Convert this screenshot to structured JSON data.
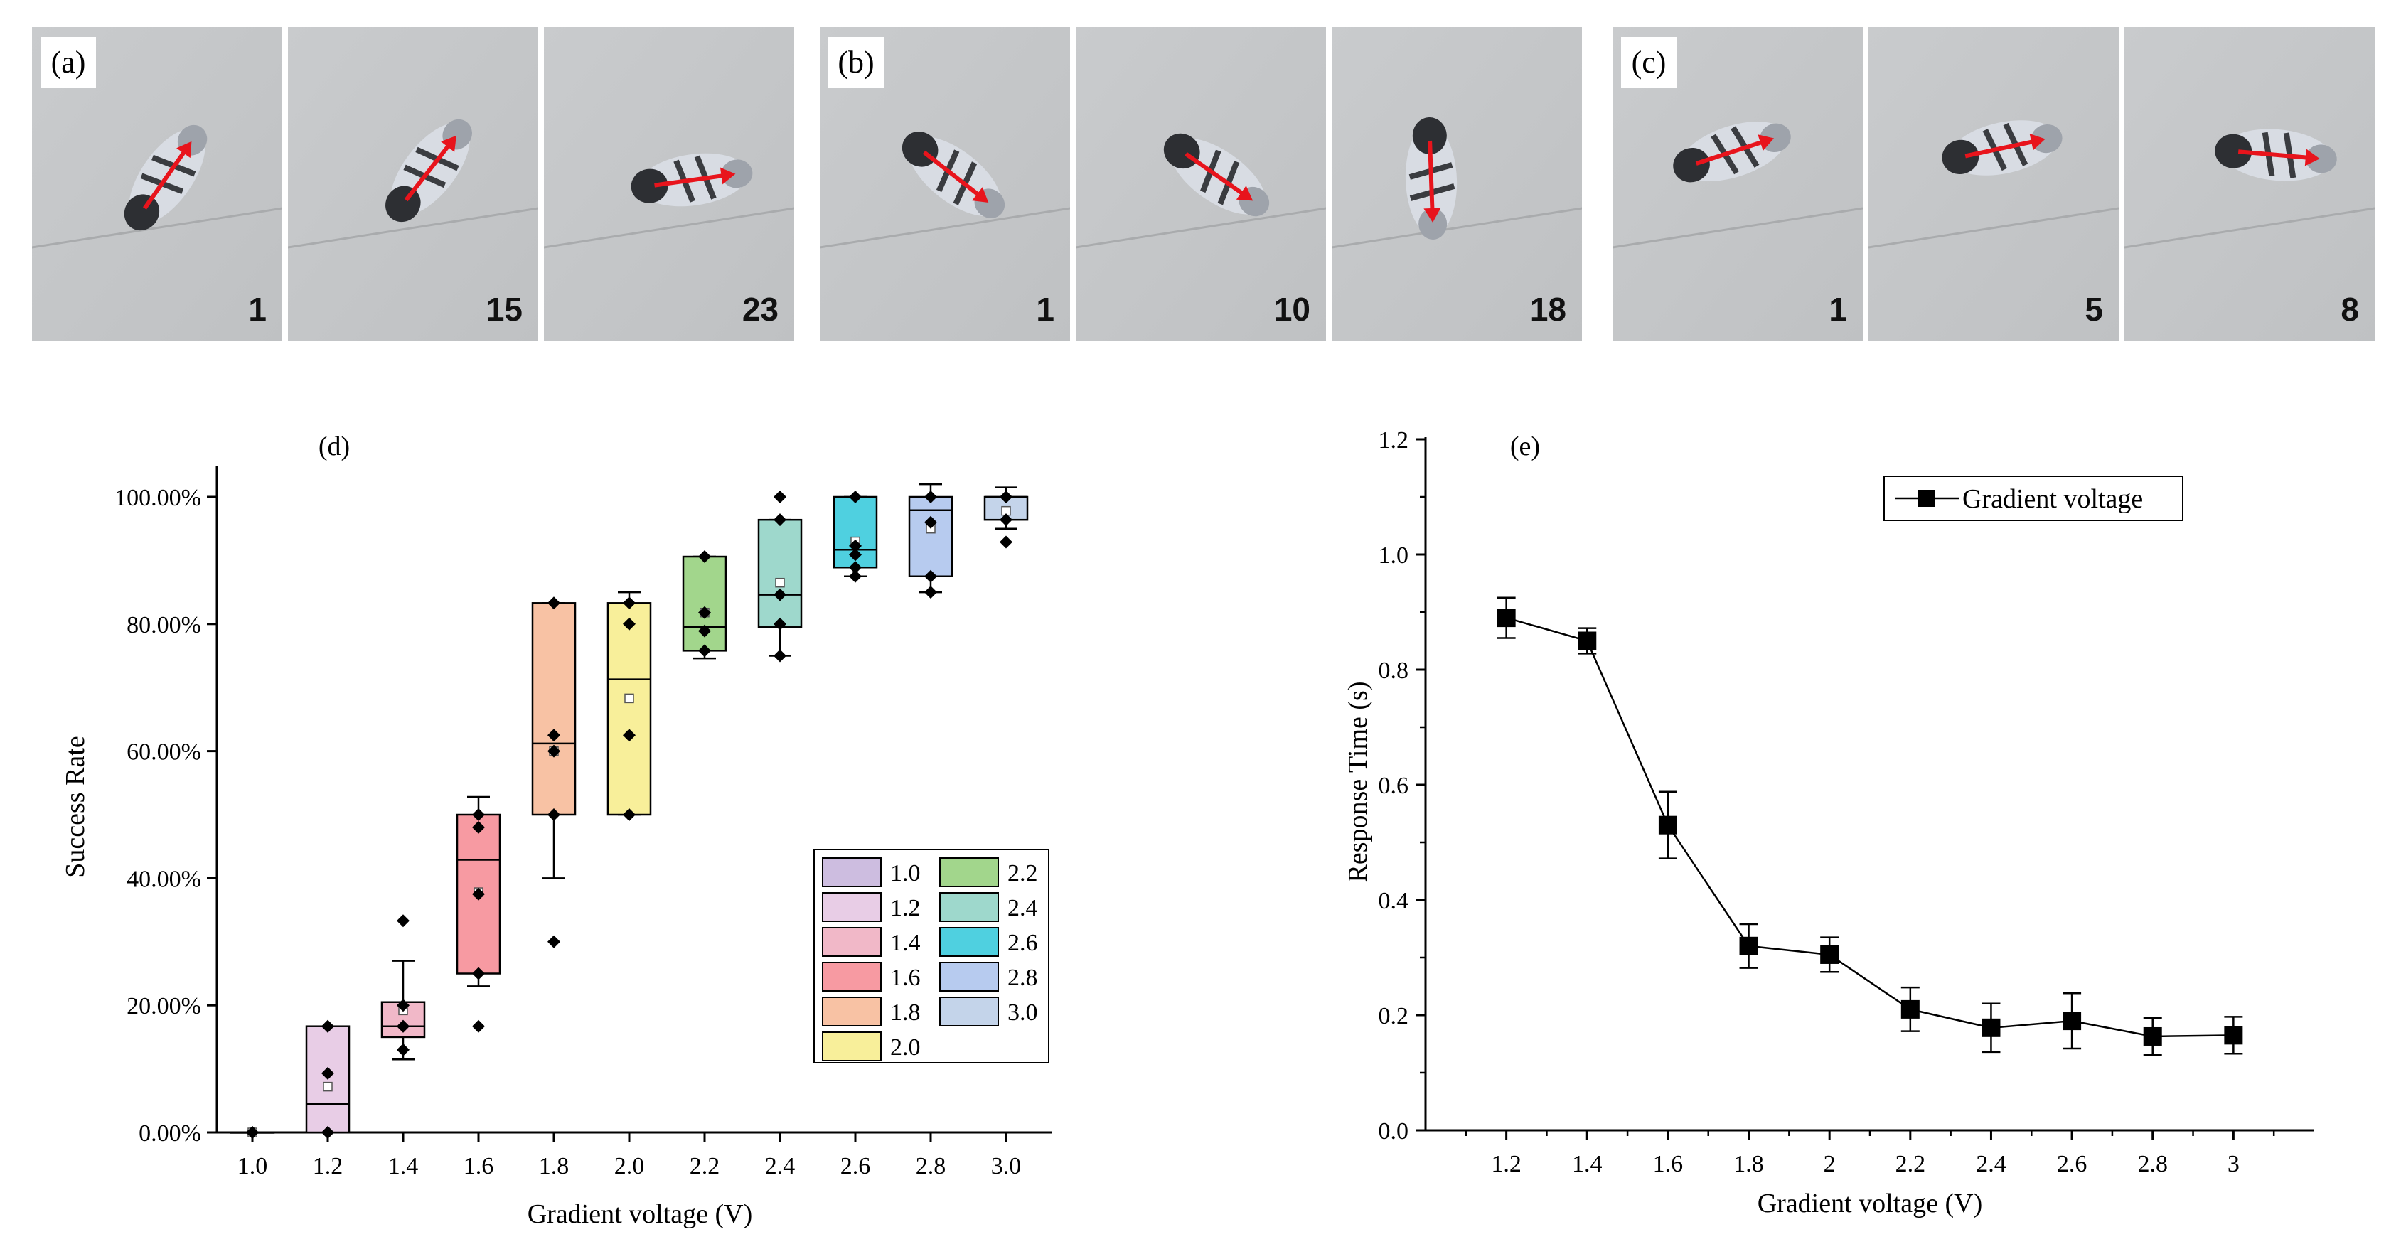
{
  "photos": {
    "groups": [
      {
        "label": "(a)",
        "frames": [
          "1",
          "15",
          "23"
        ]
      },
      {
        "label": "(b)",
        "frames": [
          "1",
          "10",
          "18"
        ]
      },
      {
        "label": "(c)",
        "frames": [
          "1",
          "5",
          "8"
        ]
      }
    ]
  },
  "colors": {
    "box_fills": [
      "#cdbde0",
      "#e8cde6",
      "#f1b8c8",
      "#f79aa2",
      "#f8c2a4",
      "#f8ef9a",
      "#a2d68c",
      "#9ed8cc",
      "#4fd0e0",
      "#b7cbef",
      "#c4d4ea"
    ],
    "line": "#000000"
  },
  "chart_data": [
    {
      "type": "box",
      "panel_label": "(d)",
      "xlabel": "Gradient voltage (V)",
      "ylabel": "Success Rate",
      "ylim": [
        0,
        100
      ],
      "yticks": [
        "0.00%",
        "20.00%",
        "40.00%",
        "60.00%",
        "80.00%",
        "100.00%"
      ],
      "ytick_values": [
        0,
        20,
        40,
        60,
        80,
        100
      ],
      "categories": [
        "1.0",
        "1.2",
        "1.4",
        "1.6",
        "1.8",
        "2.0",
        "2.2",
        "2.4",
        "2.6",
        "2.8",
        "3.0"
      ],
      "boxes": [
        {
          "q1": 0,
          "median": 0,
          "q3": 0,
          "wlo": 0,
          "whi": 0,
          "mean": 0,
          "points": [
            0,
            0,
            0
          ]
        },
        {
          "q1": 0,
          "median": 4.5,
          "q3": 16.7,
          "wlo": 0,
          "whi": 16.7,
          "mean": 7.2,
          "points": [
            16.7,
            16.7,
            9.3,
            0,
            0
          ]
        },
        {
          "q1": 15,
          "median": 16.7,
          "q3": 20.5,
          "wlo": 11.5,
          "whi": 27,
          "mean": 19.2,
          "points": [
            33.3,
            20,
            16.7,
            16.7,
            13
          ]
        },
        {
          "q1": 25,
          "median": 42.9,
          "q3": 50,
          "wlo": 23,
          "whi": 52.8,
          "mean": 37.8,
          "points": [
            50,
            48,
            37.5,
            25,
            16.7
          ]
        },
        {
          "q1": 50,
          "median": 61.2,
          "q3": 83.3,
          "wlo": 40,
          "whi": 83.3,
          "mean": 60,
          "points": [
            83.3,
            62.5,
            60,
            50,
            30
          ]
        },
        {
          "q1": 50,
          "median": 71.3,
          "q3": 83.3,
          "wlo": 50,
          "whi": 85,
          "mean": 68.3,
          "points": [
            83.3,
            80,
            62.5,
            50
          ]
        },
        {
          "q1": 75.8,
          "median": 79.5,
          "q3": 90.6,
          "wlo": 74.6,
          "whi": 90.6,
          "mean": 81.8,
          "points": [
            90.6,
            81.8,
            78.9,
            75.8
          ]
        },
        {
          "q1": 79.5,
          "median": 84.6,
          "q3": 96.4,
          "wlo": 75,
          "whi": 96.4,
          "mean": 86.5,
          "points": [
            100,
            96.4,
            84.6,
            80,
            75
          ]
        },
        {
          "q1": 88.9,
          "median": 91.7,
          "q3": 100,
          "wlo": 87.5,
          "whi": 100,
          "mean": 93,
          "points": [
            100,
            92.3,
            90.9,
            88.9,
            87.5
          ]
        },
        {
          "q1": 87.5,
          "median": 97.9,
          "q3": 100,
          "wlo": 85,
          "whi": 102,
          "mean": 95,
          "points": [
            100,
            96,
            87.5,
            85
          ]
        },
        {
          "q1": 96.4,
          "median": 100,
          "q3": 100,
          "wlo": 95,
          "whi": 101.5,
          "mean": 97.8,
          "points": [
            100,
            100,
            96.4,
            92.9
          ]
        }
      ],
      "legend": {
        "placement": "bottom-right",
        "entries": [
          "1.0",
          "1.2",
          "1.4",
          "1.6",
          "1.8",
          "2.0",
          "2.2",
          "2.4",
          "2.6",
          "2.8",
          "3.0"
        ]
      }
    },
    {
      "type": "line",
      "panel_label": "(e)",
      "xlabel": "Gradient voltage (V)",
      "ylabel": "Response Time (s)",
      "xlim": [
        1.0,
        3.2
      ],
      "ylim": [
        0,
        1.2
      ],
      "xtick_labels": [
        "1.2",
        "1.4",
        "1.6",
        "1.8",
        "2",
        "2.2",
        "2.4",
        "2.6",
        "2.8",
        "3"
      ],
      "ytick_labels": [
        "0.0",
        "0.2",
        "0.4",
        "0.6",
        "0.8",
        "1.0",
        "1.2"
      ],
      "series": [
        {
          "name": "Gradient voltage",
          "x": [
            1.2,
            1.4,
            1.6,
            1.8,
            2.0,
            2.2,
            2.4,
            2.6,
            2.8,
            3.0
          ],
          "y": [
            0.89,
            0.85,
            0.53,
            0.32,
            0.305,
            0.21,
            0.178,
            0.19,
            0.163,
            0.165
          ],
          "err": [
            0.035,
            0.022,
            0.058,
            0.038,
            0.03,
            0.038,
            0.042,
            0.048,
            0.032,
            0.032
          ]
        }
      ],
      "legend": {
        "placement": "top-right"
      }
    }
  ]
}
